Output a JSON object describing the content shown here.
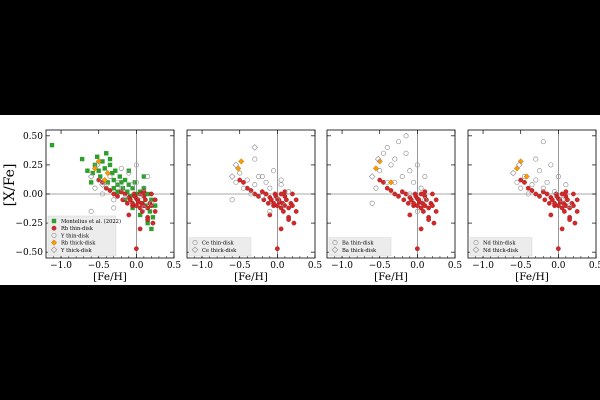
{
  "figure": {
    "ylabel": "[X/Fe]"
  },
  "chart_data": [
    {
      "type": "scatter",
      "panel": "Rb / Y",
      "xlabel": "[Fe/H]",
      "ylabel": "[X/Fe]",
      "xlim": [
        -1.2,
        0.5
      ],
      "ylim": [
        -0.55,
        0.55
      ],
      "xticks": [
        "−1.0",
        "−0.5",
        "0.0",
        "0.5"
      ],
      "yticks": [
        "0.50",
        "0.25",
        "0.00",
        "−0.25",
        "−0.50"
      ],
      "reference_lines": {
        "x": 0,
        "y": 0
      },
      "legend_position": "lower-left",
      "series": [
        {
          "name": "Montelius et al. (2022)",
          "marker": "square",
          "color": "#2ca02c",
          "x": [
            -1.12,
            -0.72,
            -0.65,
            -0.58,
            -0.55,
            -0.52,
            -0.5,
            -0.48,
            -0.45,
            -0.42,
            -0.4,
            -0.38,
            -0.35,
            -0.32,
            -0.3,
            -0.28,
            -0.25,
            -0.22,
            -0.2,
            -0.18,
            -0.15,
            -0.12,
            -0.1,
            -0.08,
            -0.05,
            -0.02,
            0.0,
            0.02,
            0.05,
            0.08,
            0.1,
            0.12,
            0.15,
            0.18,
            0.2,
            0.22,
            0.25,
            -0.6,
            -0.35,
            -0.25,
            -0.15,
            -0.05,
            0.05,
            0.15,
            0.1,
            0.2,
            -0.3,
            -0.1
          ],
          "y": [
            0.42,
            0.3,
            0.2,
            0.18,
            0.25,
            0.32,
            0.2,
            0.15,
            0.28,
            0.22,
            0.35,
            0.1,
            0.25,
            0.18,
            0.12,
            0.2,
            0.08,
            0.15,
            0.1,
            0.05,
            0.12,
            0.02,
            0.08,
            -0.02,
            0.05,
            0.1,
            0.0,
            -0.05,
            0.02,
            -0.08,
            0.05,
            -0.1,
            0.0,
            -0.15,
            -0.05,
            -0.2,
            -0.1,
            0.1,
            0.3,
            0.02,
            -0.05,
            -0.12,
            -0.18,
            -0.25,
            0.15,
            -0.3,
            0.05,
            0.2
          ]
        },
        {
          "name": "Rb thin-disk",
          "marker": "circle",
          "color": "#d62728",
          "x": [
            -0.5,
            -0.45,
            -0.4,
            -0.35,
            -0.3,
            -0.25,
            -0.2,
            -0.18,
            -0.15,
            -0.12,
            -0.1,
            -0.08,
            -0.05,
            -0.03,
            -0.02,
            0.0,
            0.0,
            0.02,
            0.03,
            0.05,
            0.05,
            0.07,
            0.08,
            0.1,
            0.1,
            0.12,
            0.15,
            0.15,
            0.18,
            0.2,
            0.22,
            0.25,
            0.25,
            -0.1,
            0.05,
            0.15,
            0.0,
            -0.05,
            0.1,
            0.2
          ],
          "y": [
            0.12,
            0.1,
            0.05,
            0.03,
            0.0,
            -0.02,
            0.02,
            -0.05,
            0.0,
            -0.08,
            -0.03,
            -0.05,
            -0.1,
            0.0,
            -0.02,
            -0.04,
            -0.1,
            -0.05,
            -0.07,
            -0.12,
            0.0,
            -0.08,
            -0.15,
            -0.1,
            -0.02,
            -0.05,
            -0.12,
            -0.2,
            -0.08,
            -0.1,
            -0.25,
            -0.05,
            -0.15,
            -0.18,
            -0.3,
            -0.22,
            -0.47,
            -0.08,
            0.02,
            0.0
          ]
        },
        {
          "name": "Y thin-disk",
          "marker": "circle-open",
          "color": "#999999",
          "x": [
            -0.55,
            -0.5,
            -0.45,
            -0.4,
            -0.35,
            -0.3,
            -0.25,
            -0.2,
            -0.15,
            -0.1,
            -0.05,
            0.0,
            0.05,
            0.1,
            0.15,
            0.2,
            -0.6,
            -0.2,
            0.1,
            0.0,
            -0.3
          ],
          "y": [
            0.05,
            0.12,
            0.0,
            0.08,
            0.15,
            -0.05,
            0.1,
            0.05,
            -0.03,
            0.18,
            0.08,
            0.1,
            -0.02,
            0.05,
            0.15,
            -0.08,
            -0.15,
            0.22,
            -0.12,
            0.25,
            -0.12
          ]
        },
        {
          "name": "Rb thick-disk",
          "marker": "diamond",
          "color": "#ff9900",
          "x": [
            -0.55,
            -0.5,
            -0.42,
            -0.38
          ],
          "y": [
            0.22,
            0.28,
            0.12,
            0.18
          ]
        },
        {
          "name": "Y thick-disk",
          "marker": "diamond-open",
          "color": "#999999",
          "x": [
            -0.6,
            -0.52,
            -0.45
          ],
          "y": [
            0.15,
            0.25,
            0.08
          ]
        }
      ]
    },
    {
      "type": "scatter",
      "panel": "Ce",
      "xlabel": "[Fe/H]",
      "xlim": [
        -1.2,
        0.5
      ],
      "ylim": [
        -0.55,
        0.55
      ],
      "xticks": [
        "−1.0",
        "−0.5",
        "0.0",
        "0.5"
      ],
      "reference_lines": {
        "x": 0,
        "y": 0
      },
      "legend_position": "lower-left",
      "series": [
        {
          "name": "Rb thin-disk",
          "marker": "circle",
          "color": "#d62728",
          "x": [
            -0.5,
            -0.45,
            -0.4,
            -0.35,
            -0.3,
            -0.25,
            -0.2,
            -0.18,
            -0.15,
            -0.12,
            -0.1,
            -0.08,
            -0.05,
            -0.03,
            -0.02,
            0.0,
            0.0,
            0.02,
            0.03,
            0.05,
            0.05,
            0.07,
            0.08,
            0.1,
            0.1,
            0.12,
            0.15,
            0.15,
            0.18,
            0.2,
            0.22,
            0.25,
            0.25,
            -0.1,
            0.05,
            0.15,
            0.0,
            -0.05,
            0.1,
            0.2
          ],
          "y": [
            0.12,
            0.1,
            0.05,
            0.03,
            0.0,
            -0.02,
            0.02,
            -0.05,
            0.0,
            -0.08,
            -0.03,
            -0.05,
            -0.1,
            0.0,
            -0.02,
            -0.04,
            -0.1,
            -0.05,
            -0.07,
            -0.12,
            0.0,
            -0.08,
            -0.15,
            -0.1,
            -0.02,
            -0.05,
            -0.12,
            -0.2,
            -0.08,
            -0.1,
            -0.25,
            -0.05,
            -0.15,
            -0.18,
            -0.3,
            -0.22,
            -0.47,
            -0.08,
            0.02,
            0.0
          ]
        },
        {
          "name": "Ce thin-disk",
          "marker": "circle-open",
          "color": "#999999",
          "x": [
            -0.55,
            -0.5,
            -0.45,
            -0.4,
            -0.35,
            -0.3,
            -0.25,
            -0.2,
            -0.15,
            -0.1,
            -0.05,
            0.0,
            0.05,
            0.1,
            0.15,
            -0.6,
            -0.3,
            -0.2,
            0.05,
            -0.1
          ],
          "y": [
            0.1,
            0.18,
            0.05,
            0.12,
            0.0,
            0.08,
            0.15,
            -0.02,
            0.1,
            0.05,
            0.2,
            -0.05,
            0.08,
            -0.1,
            0.02,
            -0.05,
            0.3,
            0.15,
            0.12,
            -0.15
          ]
        },
        {
          "name": "Rb thick-disk",
          "marker": "diamond",
          "color": "#ff9900",
          "x": [
            -0.52,
            -0.48
          ],
          "y": [
            0.22,
            0.28
          ]
        },
        {
          "name": "Ce thick-disk",
          "marker": "diamond-open",
          "color": "#999999",
          "x": [
            -0.6,
            -0.55,
            -0.3
          ],
          "y": [
            0.15,
            0.25,
            0.4
          ]
        }
      ]
    },
    {
      "type": "scatter",
      "panel": "Ba",
      "xlabel": "[Fe/H]",
      "xlim": [
        -1.2,
        0.5
      ],
      "ylim": [
        -0.55,
        0.55
      ],
      "xticks": [
        "−1.0",
        "−0.5",
        "0.0",
        "0.5"
      ],
      "reference_lines": {
        "x": 0,
        "y": 0
      },
      "legend_position": "lower-left",
      "series": [
        {
          "name": "Rb thin-disk",
          "marker": "circle",
          "color": "#d62728",
          "x": [
            -0.5,
            -0.45,
            -0.4,
            -0.35,
            -0.3,
            -0.25,
            -0.2,
            -0.18,
            -0.15,
            -0.12,
            -0.1,
            -0.08,
            -0.05,
            -0.03,
            -0.02,
            0.0,
            0.0,
            0.02,
            0.03,
            0.05,
            0.05,
            0.07,
            0.08,
            0.1,
            0.1,
            0.12,
            0.15,
            0.15,
            0.18,
            0.2,
            0.22,
            0.25,
            0.25,
            -0.1,
            0.05,
            0.15,
            0.0,
            -0.05,
            0.1,
            0.2
          ],
          "y": [
            0.12,
            0.1,
            0.05,
            0.03,
            0.0,
            -0.02,
            0.02,
            -0.05,
            0.0,
            -0.08,
            -0.03,
            -0.05,
            -0.1,
            0.0,
            -0.02,
            -0.04,
            -0.1,
            -0.05,
            -0.07,
            -0.12,
            0.0,
            -0.08,
            -0.15,
            -0.1,
            -0.02,
            -0.05,
            -0.12,
            -0.2,
            -0.08,
            -0.1,
            -0.25,
            -0.05,
            -0.15,
            -0.18,
            -0.3,
            -0.22,
            -0.47,
            -0.08,
            0.02,
            0.0
          ]
        },
        {
          "name": "Ba thin-disk",
          "marker": "circle-open",
          "color": "#999999",
          "x": [
            -0.55,
            -0.5,
            -0.45,
            -0.4,
            -0.35,
            -0.3,
            -0.25,
            -0.2,
            -0.15,
            -0.1,
            -0.05,
            0.0,
            0.05,
            0.1,
            -0.6,
            -0.3,
            -0.15,
            -0.1,
            0.0,
            0.1,
            -0.4
          ],
          "y": [
            0.05,
            0.2,
            0.35,
            0.1,
            0.25,
            0.3,
            0.45,
            0.15,
            0.35,
            0.2,
            0.1,
            0.25,
            0.05,
            0.15,
            -0.08,
            0.1,
            0.5,
            0.0,
            -0.15,
            -0.05,
            0.4
          ]
        },
        {
          "name": "Rb thick-disk",
          "marker": "diamond",
          "color": "#ff9900",
          "x": [
            -0.55,
            -0.5,
            -0.35
          ],
          "y": [
            0.22,
            0.28,
            0.1
          ]
        },
        {
          "name": "Ba thick-disk",
          "marker": "diamond-open",
          "color": "#999999",
          "x": [
            -0.6,
            -0.52
          ],
          "y": [
            0.15,
            0.3
          ]
        }
      ]
    },
    {
      "type": "scatter",
      "panel": "Nd",
      "xlabel": "[Fe/H]",
      "xlim": [
        -1.2,
        0.5
      ],
      "ylim": [
        -0.55,
        0.55
      ],
      "xticks": [
        "−1.0",
        "−0.5",
        "0.0",
        "0.5"
      ],
      "reference_lines": {
        "x": 0,
        "y": 0
      },
      "legend_position": "lower-left",
      "series": [
        {
          "name": "Rb thin-disk",
          "marker": "circle",
          "color": "#d62728",
          "x": [
            -0.5,
            -0.45,
            -0.4,
            -0.35,
            -0.3,
            -0.25,
            -0.2,
            -0.18,
            -0.15,
            -0.12,
            -0.1,
            -0.08,
            -0.05,
            -0.03,
            -0.02,
            0.0,
            0.0,
            0.02,
            0.03,
            0.05,
            0.05,
            0.07,
            0.08,
            0.1,
            0.1,
            0.12,
            0.15,
            0.15,
            0.18,
            0.2,
            0.22,
            0.25,
            0.25,
            -0.1,
            0.05,
            0.15,
            0.0,
            -0.05,
            0.1,
            0.2
          ],
          "y": [
            0.12,
            0.1,
            0.05,
            0.03,
            0.0,
            -0.02,
            0.02,
            -0.05,
            0.0,
            -0.08,
            -0.03,
            -0.05,
            -0.1,
            0.0,
            -0.02,
            -0.04,
            -0.1,
            -0.05,
            -0.07,
            -0.12,
            0.0,
            -0.08,
            -0.15,
            -0.1,
            -0.02,
            -0.05,
            -0.12,
            -0.2,
            -0.08,
            -0.1,
            -0.25,
            -0.05,
            -0.15,
            -0.18,
            -0.3,
            -0.22,
            -0.47,
            -0.08,
            0.02,
            0.0
          ]
        },
        {
          "name": "Nd thin-disk",
          "marker": "circle-open",
          "color": "#999999",
          "x": [
            -0.55,
            -0.5,
            -0.45,
            -0.4,
            -0.35,
            -0.3,
            -0.25,
            -0.2,
            -0.15,
            -0.1,
            -0.05,
            0.0,
            0.05,
            0.1,
            -0.2,
            -0.3,
            0.15
          ],
          "y": [
            0.1,
            0.05,
            0.15,
            0.0,
            0.08,
            0.12,
            0.2,
            0.05,
            0.1,
            0.25,
            0.02,
            0.15,
            -0.05,
            0.08,
            0.45,
            0.3,
            -0.1
          ]
        },
        {
          "name": "Rb thick-disk",
          "marker": "diamond",
          "color": "#ff9900",
          "x": [
            -0.55,
            -0.5,
            -0.42
          ],
          "y": [
            0.22,
            0.28,
            0.15
          ]
        },
        {
          "name": "Nd thick-disk",
          "marker": "diamond-open",
          "color": "#999999",
          "x": [
            -0.6,
            -0.52
          ],
          "y": [
            0.18,
            0.25
          ]
        }
      ]
    }
  ]
}
